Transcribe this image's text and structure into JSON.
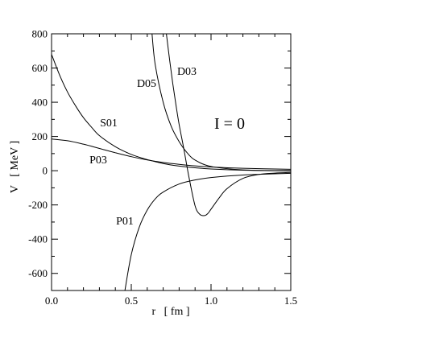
{
  "chart_data": {
    "type": "line",
    "title": "",
    "xlabel": "r   [ fm ]",
    "ylabel": "V   [ MeV ]",
    "xlim": [
      0.0,
      1.5
    ],
    "ylim": [
      -700,
      800
    ],
    "x_ticks": [
      0.0,
      0.5,
      1.0,
      1.5
    ],
    "x_tick_labels": [
      "0.0",
      "0.5",
      "1.0",
      "1.5"
    ],
    "y_ticks": [
      -600,
      -400,
      -200,
      0,
      200,
      400,
      600,
      800
    ],
    "y_tick_labels": [
      "-600",
      "-400",
      "-200",
      "0",
      "200",
      "400",
      "600",
      "800"
    ],
    "grid": false,
    "annotation": "I = 0",
    "series": [
      {
        "name": "S01",
        "x": [
          0.0,
          0.05,
          0.1,
          0.15,
          0.2,
          0.25,
          0.3,
          0.4,
          0.5,
          0.6,
          0.7,
          0.8,
          0.9,
          1.0,
          1.2,
          1.5
        ],
        "y": [
          680,
          560,
          460,
          380,
          310,
          255,
          205,
          140,
          95,
          65,
          42,
          27,
          17,
          10,
          3,
          -2
        ]
      },
      {
        "name": "P03",
        "x": [
          0.0,
          0.1,
          0.2,
          0.3,
          0.4,
          0.5,
          0.6,
          0.7,
          0.8,
          0.9,
          1.0,
          1.2,
          1.5
        ],
        "y": [
          185,
          175,
          155,
          130,
          105,
          82,
          63,
          48,
          37,
          28,
          22,
          14,
          8
        ]
      },
      {
        "name": "P01",
        "x": [
          0.46,
          0.5,
          0.55,
          0.6,
          0.65,
          0.7,
          0.8,
          0.9,
          1.0,
          1.2,
          1.5
        ],
        "y": [
          -700,
          -490,
          -330,
          -230,
          -165,
          -125,
          -78,
          -54,
          -40,
          -25,
          -15
        ]
      },
      {
        "name": "D05",
        "x": [
          0.63,
          0.65,
          0.7,
          0.75,
          0.8,
          0.85,
          0.9,
          1.0,
          1.2,
          1.5
        ],
        "y": [
          800,
          620,
          400,
          260,
          170,
          105,
          62,
          25,
          5,
          0
        ]
      },
      {
        "name": "D03",
        "x": [
          0.72,
          0.74,
          0.76,
          0.78,
          0.8,
          0.83,
          0.86,
          0.9,
          0.93,
          0.96,
          0.98,
          1.0,
          1.05,
          1.1,
          1.2,
          1.3,
          1.4,
          1.5
        ],
        "y": [
          800,
          650,
          510,
          385,
          270,
          125,
          -30,
          -205,
          -255,
          -262,
          -250,
          -225,
          -160,
          -105,
          -45,
          -22,
          -14,
          -10
        ]
      }
    ],
    "curve_labels": [
      {
        "series": "S01",
        "text": "S01"
      },
      {
        "series": "P03",
        "text": "P03"
      },
      {
        "series": "P01",
        "text": "P01"
      },
      {
        "series": "D05",
        "text": "D05"
      },
      {
        "series": "D03",
        "text": "D03"
      }
    ]
  }
}
